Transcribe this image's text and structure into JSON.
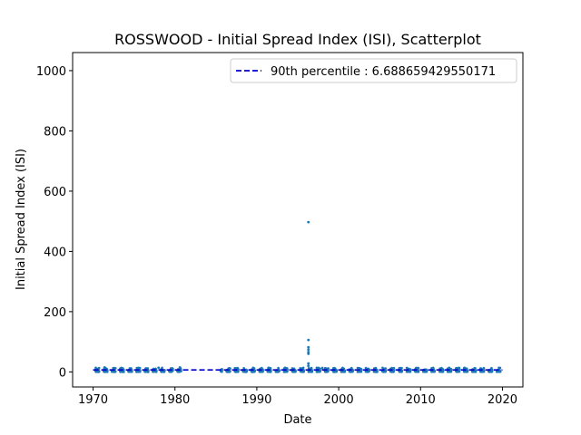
{
  "chart_data": {
    "type": "scatter",
    "title": "ROSSWOOD - Initial Spread Index (ISI), Scatterplot",
    "xlabel": "Date",
    "ylabel": "Initial Spread Index (ISI)",
    "xlim": [
      1967.5,
      2022.5
    ],
    "ylim": [
      -50,
      1060
    ],
    "xticks": [
      1970,
      1980,
      1990,
      2000,
      2010,
      2020
    ],
    "yticks": [
      0,
      200,
      400,
      600,
      800,
      1000
    ],
    "legend_position": "top-right",
    "point_color": "#1f77b4",
    "reference_line": {
      "label": "90th percentile : 6.688659429550171",
      "value": 6.688659429550171,
      "x_start": 1970,
      "x_end": 2020,
      "color": "#0000cc",
      "style": "dashed"
    },
    "season_ranges": [
      [
        1970,
        1981
      ],
      [
        1985.5,
        2020
      ]
    ],
    "outliers": [
      {
        "x": 1996.3,
        "y": 497
      },
      {
        "x": 1996.3,
        "y": 106
      },
      {
        "x": 1996.3,
        "y": 82
      },
      {
        "x": 1996.3,
        "y": 74
      },
      {
        "x": 1996.3,
        "y": 66
      },
      {
        "x": 1996.3,
        "y": 60
      },
      {
        "x": 1996.3,
        "y": 28
      },
      {
        "x": 1996.3,
        "y": 20
      },
      {
        "x": 1971.4,
        "y": 15
      },
      {
        "x": 1978.0,
        "y": 14
      },
      {
        "x": 1980.6,
        "y": 15
      },
      {
        "x": 1998.0,
        "y": 13
      },
      {
        "x": 2015.4,
        "y": 13
      }
    ]
  }
}
